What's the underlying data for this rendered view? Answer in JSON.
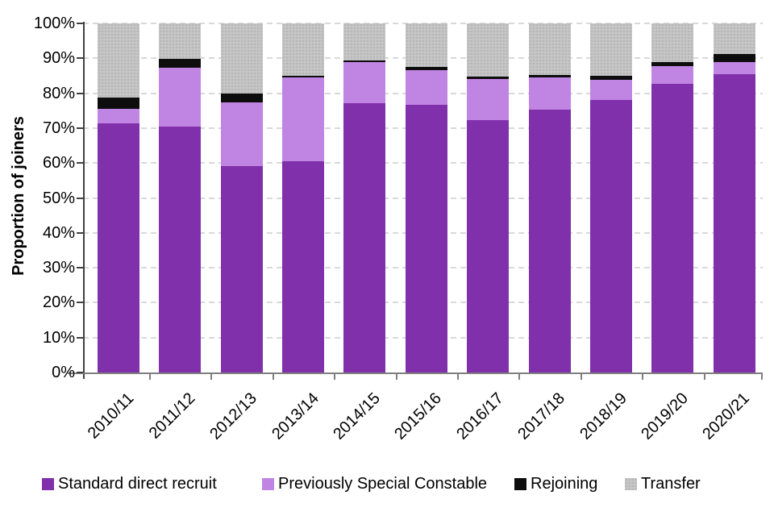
{
  "chart_data": {
    "type": "bar",
    "stacked": true,
    "ylabel": "Proportion of joiners",
    "categories": [
      "2010/11",
      "2011/12",
      "2012/13",
      "2013/14",
      "2014/15",
      "2015/16",
      "2016/17",
      "2017/18",
      "2018/19",
      "2019/20",
      "2020/21"
    ],
    "series": [
      {
        "name": "Standard direct recruit",
        "color": "#8130ab",
        "texture": "solid",
        "values": [
          71.3,
          70.5,
          59.2,
          60.5,
          77.2,
          76.7,
          72.2,
          75.3,
          78.1,
          82.6,
          85.5
        ]
      },
      {
        "name": "Previously Special Constable",
        "color": "#c084e2",
        "texture": "solid",
        "values": [
          4.2,
          16.9,
          18.2,
          24.0,
          11.6,
          10.0,
          11.8,
          9.2,
          5.7,
          5.2,
          3.3
        ]
      },
      {
        "name": "Rejoining",
        "color": "#0d0d0d",
        "texture": "solid",
        "values": [
          3.3,
          2.4,
          2.4,
          0.6,
          0.6,
          0.8,
          0.8,
          0.8,
          1.1,
          1.2,
          2.5
        ]
      },
      {
        "name": "Transfer",
        "color": "#c5c5c5",
        "texture": "dotted",
        "values": [
          21.2,
          10.2,
          20.2,
          14.9,
          10.6,
          12.5,
          15.2,
          14.7,
          15.1,
          11.0,
          8.7
        ]
      }
    ],
    "y_ticks": [
      "0%",
      "10%",
      "20%",
      "30%",
      "40%",
      "50%",
      "60%",
      "70%",
      "80%",
      "90%",
      "100%"
    ],
    "ylim": [
      0,
      100
    ],
    "grid": "horizontal-dashed",
    "legend_position": "bottom"
  },
  "colors": {
    "background": "#ffffff",
    "gridline": "#d9d9d9",
    "y_axis": "#404040",
    "x_axis": "#7f7f7f",
    "text": "#000000",
    "transfer_dot": "#b0b0b0"
  }
}
